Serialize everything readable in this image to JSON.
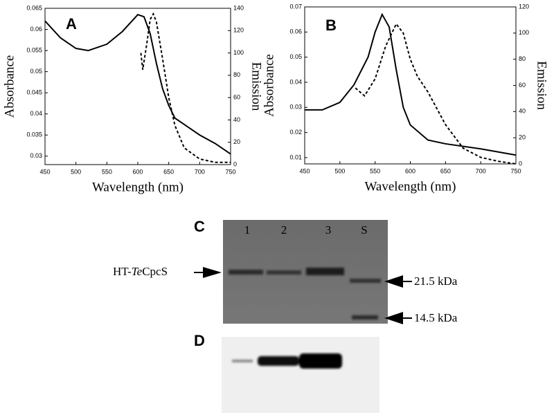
{
  "chart_data": [
    {
      "type": "line",
      "panel": "A",
      "xlabel": "Wavelength (nm)",
      "ylabel": "Absorbance",
      "y2label": "Emission",
      "xlim": [
        450,
        750
      ],
      "xticks": [
        450,
        500,
        550,
        600,
        650,
        700,
        750
      ],
      "ylim": [
        0.028,
        0.065
      ],
      "yticks": [
        0.03,
        0.035,
        0.04,
        0.045,
        0.05,
        0.055,
        0.06,
        0.065
      ],
      "y2lim": [
        0,
        140
      ],
      "y2ticks": [
        0,
        20,
        40,
        60,
        80,
        100,
        120,
        140
      ],
      "series": [
        {
          "style": "solid",
          "color": "#000000",
          "x": [
            450,
            475,
            500,
            520,
            550,
            575,
            600,
            610,
            620,
            630,
            640,
            650,
            660,
            675,
            700,
            725,
            750
          ],
          "values": [
            0.062,
            0.058,
            0.0555,
            0.055,
            0.0565,
            0.0595,
            0.0635,
            0.063,
            0.059,
            0.052,
            0.046,
            0.042,
            0.039,
            0.0375,
            0.035,
            0.033,
            0.0305
          ]
        },
        {
          "style": "dashed",
          "color": "#000000",
          "axis": "y2",
          "x": [
            605,
            608,
            615,
            620,
            625,
            630,
            640,
            650,
            660,
            675,
            700,
            725,
            750
          ],
          "values": [
            100,
            85,
            110,
            130,
            135,
            128,
            95,
            60,
            35,
            15,
            5,
            2,
            2
          ]
        }
      ]
    },
    {
      "type": "line",
      "panel": "B",
      "xlabel": "Wavelength (nm)",
      "ylabel": "Absorbance",
      "y2label": "Emission",
      "xlim": [
        450,
        750
      ],
      "xticks": [
        450,
        500,
        550,
        600,
        650,
        700,
        750
      ],
      "ylim": [
        0.0075,
        0.07
      ],
      "yticks": [
        0.01,
        0.02,
        0.03,
        0.04,
        0.05,
        0.06,
        0.07
      ],
      "y2lim": [
        0,
        120
      ],
      "y2ticks": [
        0,
        20,
        40,
        60,
        80,
        100,
        120
      ],
      "series": [
        {
          "style": "solid",
          "color": "#000000",
          "x": [
            450,
            475,
            500,
            520,
            540,
            550,
            560,
            570,
            580,
            590,
            600,
            625,
            650,
            700,
            750
          ],
          "values": [
            0.029,
            0.029,
            0.032,
            0.039,
            0.05,
            0.06,
            0.067,
            0.062,
            0.045,
            0.03,
            0.023,
            0.017,
            0.0155,
            0.0135,
            0.011
          ]
        },
        {
          "style": "dashed",
          "color": "#000000",
          "axis": "y2",
          "x": [
            522,
            535,
            550,
            565,
            580,
            590,
            600,
            610,
            625,
            650,
            675,
            700,
            725,
            750
          ],
          "values": [
            58,
            52,
            65,
            90,
            107,
            100,
            80,
            67,
            55,
            30,
            12,
            5,
            2,
            0
          ]
        }
      ]
    }
  ],
  "gel": {
    "panel_c": "C",
    "panel_d": "D",
    "lanes": [
      "1",
      "2",
      "3",
      "S"
    ],
    "protein_label": [
      "HT-",
      "Te",
      "CpcS"
    ],
    "markers": [
      "21.5 kDa",
      "14.5 kDa"
    ]
  }
}
